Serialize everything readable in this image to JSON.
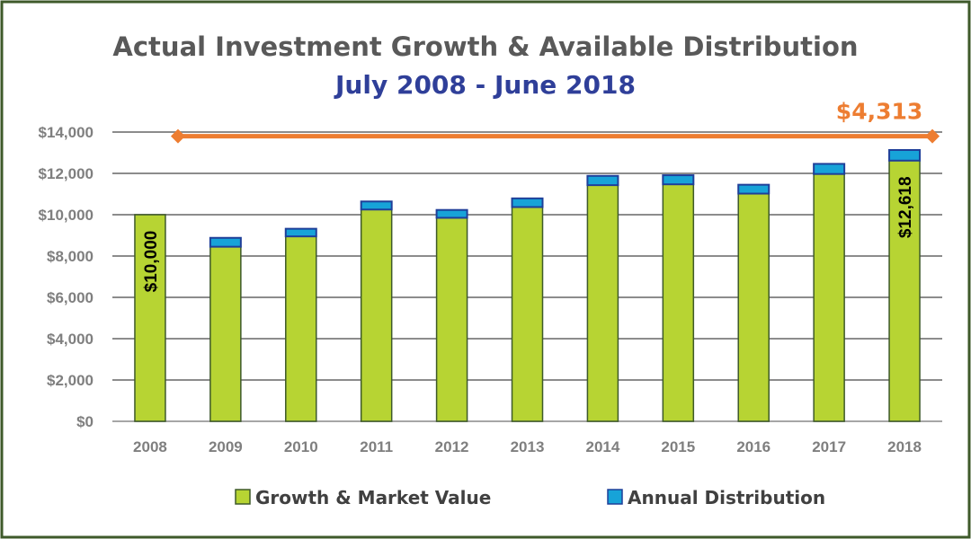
{
  "chart_data": {
    "type": "bar",
    "stacked": true,
    "title": "Actual Investment Growth & Available Distribution",
    "subtitle": "July 2008 - June 2018",
    "categories": [
      "2008",
      "2009",
      "2010",
      "2011",
      "2012",
      "2013",
      "2014",
      "2015",
      "2016",
      "2017",
      "2018"
    ],
    "series": [
      {
        "name": "Growth & Market Value",
        "color": "#b7d433",
        "values": [
          10000,
          8450,
          8950,
          10250,
          9850,
          10370,
          11430,
          11470,
          11020,
          11970,
          12618
        ]
      },
      {
        "name": "Annual Distribution",
        "color": "#17a3d8",
        "values": [
          0,
          430,
          370,
          390,
          380,
          420,
          450,
          440,
          430,
          490,
          513
        ]
      }
    ],
    "data_labels": [
      {
        "category": "2008",
        "text": "$10,000"
      },
      {
        "category": "2018",
        "text": "$12,618"
      }
    ],
    "annotation": {
      "text": "$4,313",
      "from": "2008",
      "to": "2018",
      "level": 13800,
      "color": "#ed7d31"
    },
    "yticks": [
      "$0",
      "$2,000",
      "$4,000",
      "$6,000",
      "$8,000",
      "$10,000",
      "$12,000",
      "$14,000"
    ],
    "ylim": [
      0,
      14000
    ],
    "grid": true,
    "legend": "bottom",
    "title_color": "#595959",
    "subtitle_color": "#2f3f99",
    "border_color": "#3e5a2a"
  }
}
